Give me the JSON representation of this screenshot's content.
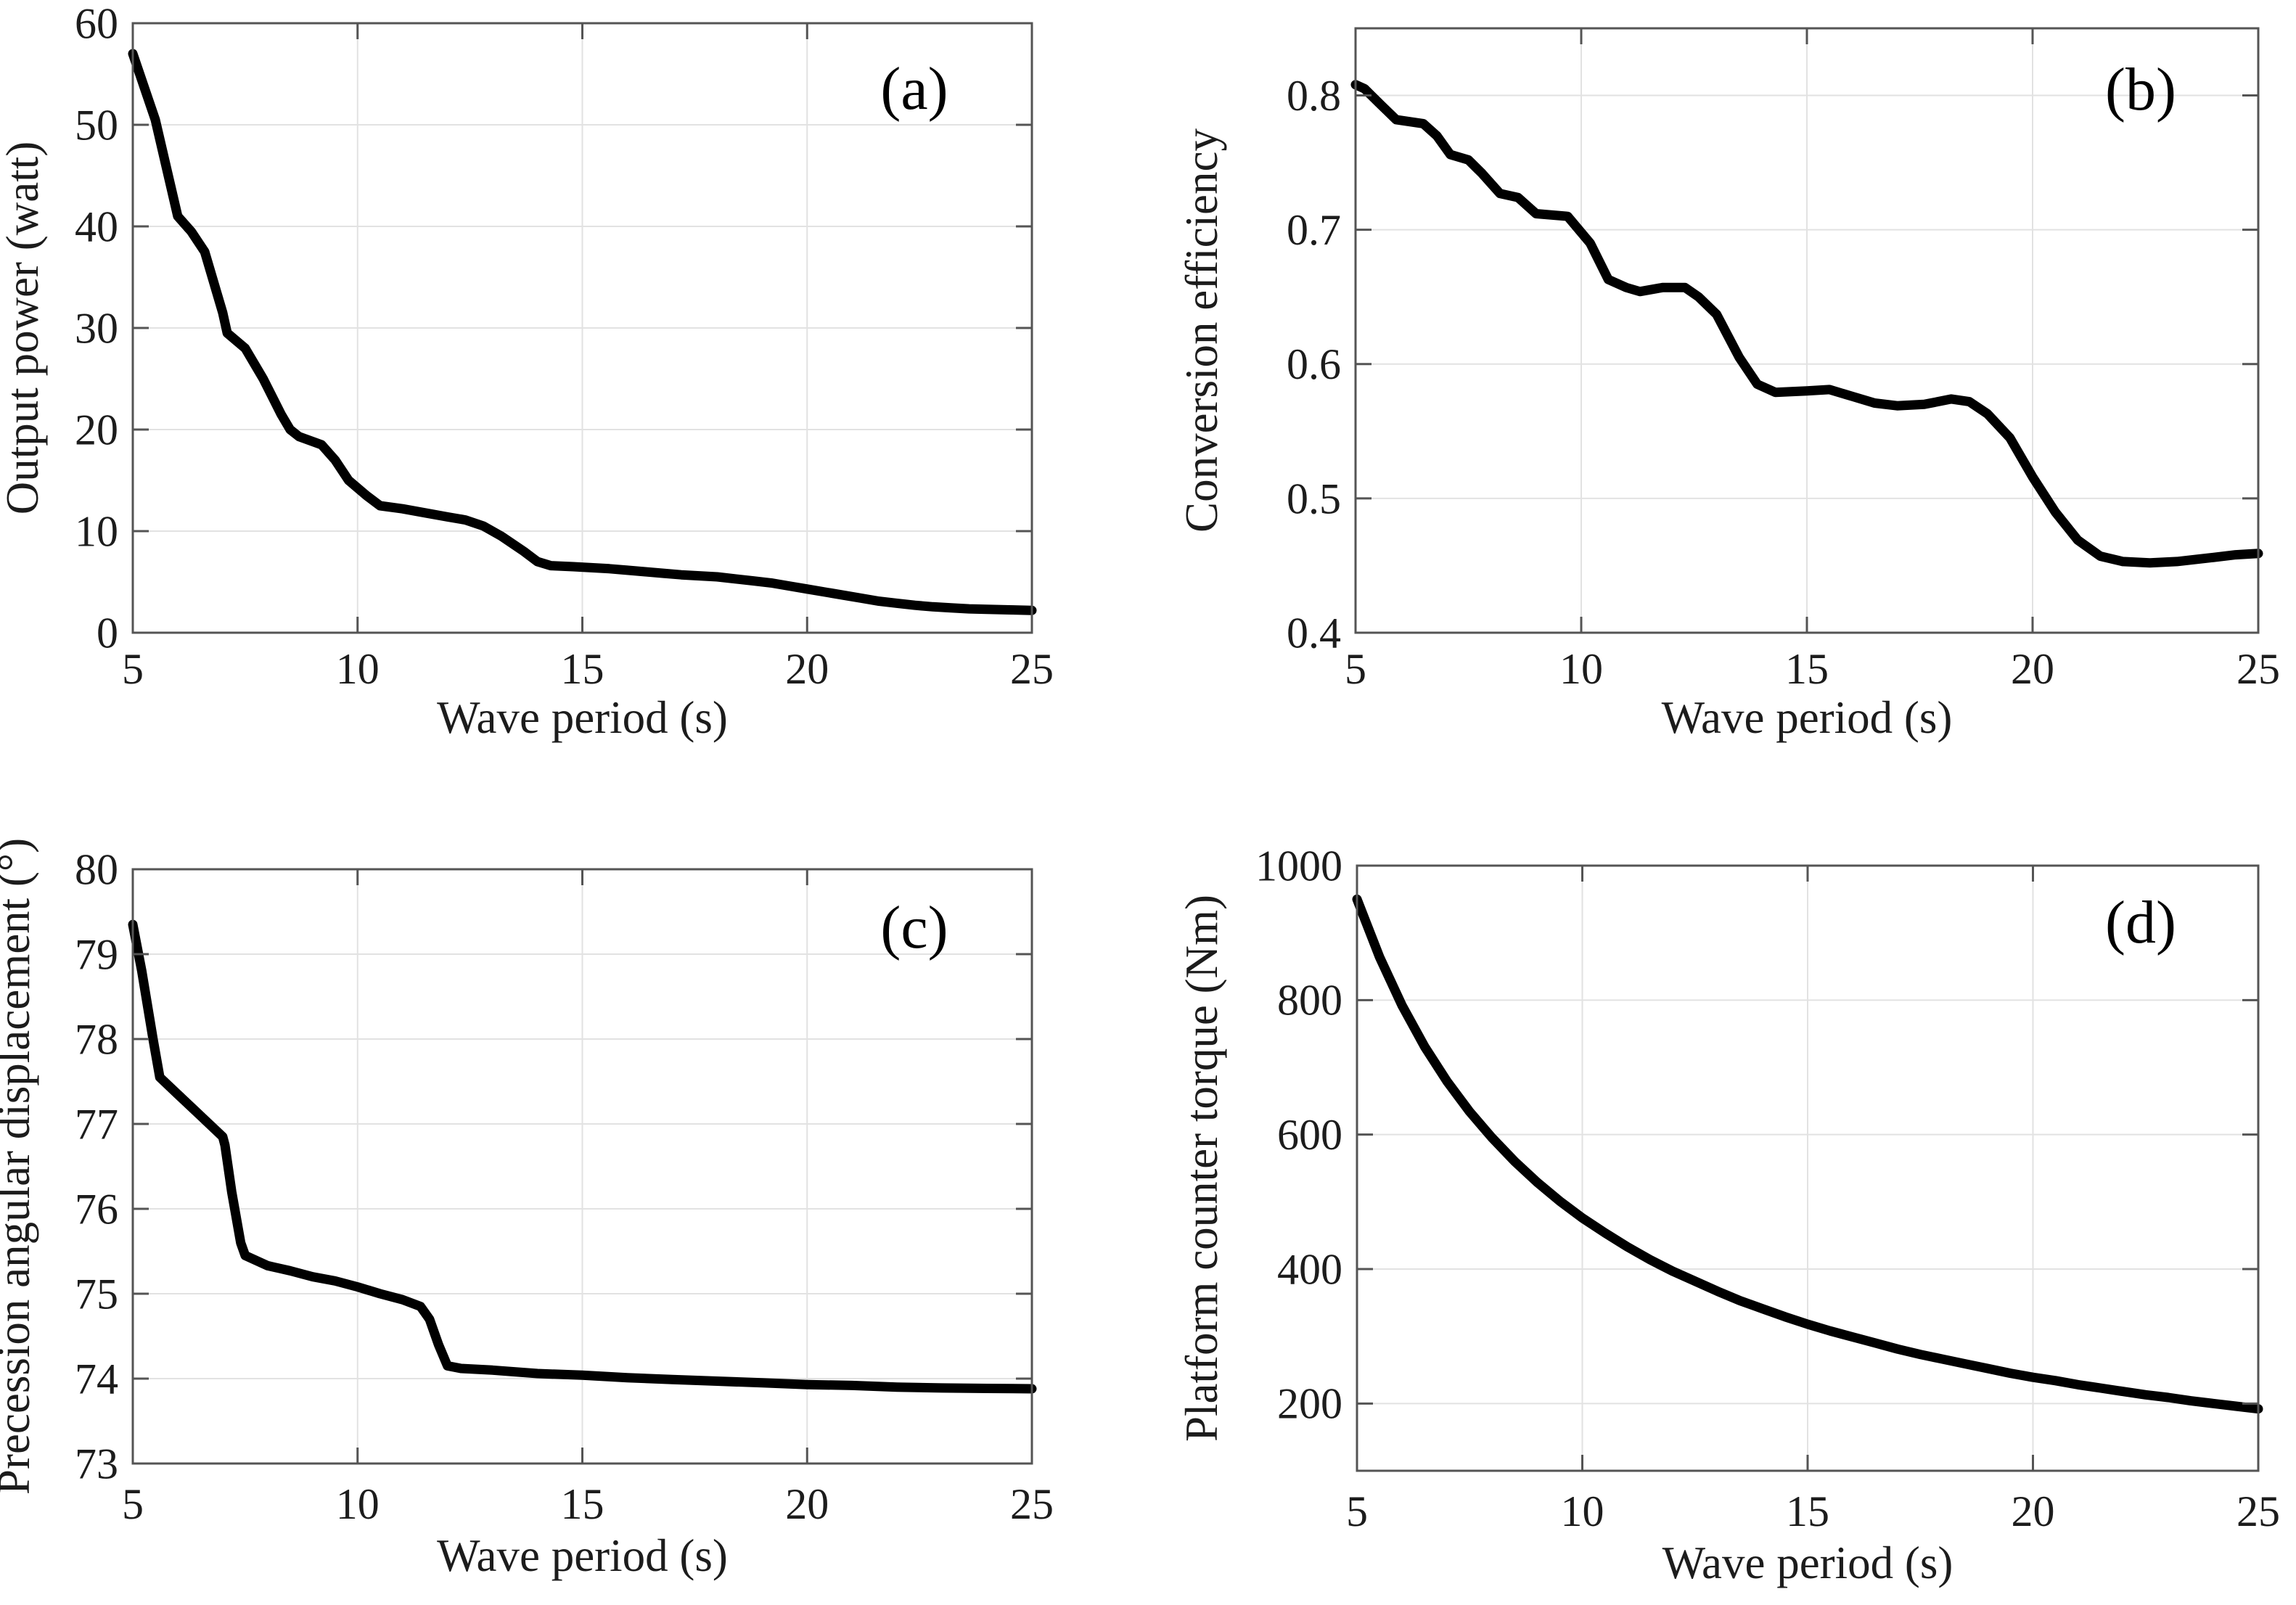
{
  "figure": {
    "background": "#ffffff",
    "colors": {
      "curve": "#000000",
      "frame": "#545454",
      "grid": "#e2e2e2",
      "tick_text": "#1c1c1c",
      "panel_label_text": "#000000"
    }
  },
  "chart_data": [
    {
      "type": "line",
      "panel_label": "(a)",
      "title": "",
      "xlabel": "Wave period (s)",
      "ylabel": "Output power (watt)",
      "xlim": [
        5,
        25
      ],
      "ylim": [
        0,
        60
      ],
      "xticks": [
        5,
        10,
        15,
        20,
        25
      ],
      "yticks": [
        0,
        10,
        20,
        30,
        40,
        50,
        60
      ],
      "grid": true,
      "legend": "none",
      "x": [
        5,
        5.5,
        6,
        6.3,
        6.6,
        7,
        7.1,
        7.5,
        7.9,
        8.3,
        8.5,
        8.7,
        9.2,
        9.5,
        9.8,
        10.2,
        10.5,
        11,
        11.5,
        12,
        12.4,
        12.8,
        13.2,
        13.7,
        14,
        14.3,
        14.8,
        15.2,
        15.6,
        16,
        16.4,
        16.8,
        17.2,
        17.6,
        18,
        18.4,
        18.8,
        19.2,
        19.6,
        20,
        20.4,
        20.8,
        21.2,
        21.6,
        22,
        22.4,
        22.8,
        23.2,
        23.6,
        24,
        24.5,
        25
      ],
      "y": [
        57,
        50.5,
        41,
        39.5,
        37.5,
        31.5,
        29.5,
        28,
        25,
        21.5,
        20,
        19.3,
        18.5,
        17,
        15,
        13.5,
        12.5,
        12.2,
        11.8,
        11.4,
        11.1,
        10.5,
        9.5,
        8,
        7,
        6.6,
        6.5,
        6.4,
        6.3,
        6.15,
        6,
        5.85,
        5.7,
        5.6,
        5.5,
        5.3,
        5.1,
        4.9,
        4.6,
        4.3,
        4,
        3.7,
        3.4,
        3.1,
        2.9,
        2.7,
        2.55,
        2.45,
        2.35,
        2.3,
        2.25,
        2.2
      ]
    },
    {
      "type": "line",
      "panel_label": "(b)",
      "title": "",
      "xlabel": "Wave period (s)",
      "ylabel": "Conversion efficiency",
      "xlim": [
        5,
        25
      ],
      "ylim": [
        0.4,
        0.85
      ],
      "xticks": [
        5,
        10,
        15,
        20,
        25
      ],
      "yticks": [
        0.4,
        0.5,
        0.6,
        0.7,
        0.8
      ],
      "grid": true,
      "legend": "none",
      "x": [
        5,
        5.2,
        5.5,
        5.9,
        6.5,
        6.8,
        7.1,
        7.5,
        7.8,
        8.2,
        8.6,
        9,
        9.7,
        10.2,
        10.6,
        11,
        11.3,
        11.8,
        12.3,
        12.6,
        13,
        13.5,
        13.9,
        14.3,
        15,
        15.5,
        16,
        16.5,
        17,
        17.6,
        18.2,
        18.6,
        19,
        19.5,
        20,
        20.5,
        21,
        21.5,
        22,
        22.6,
        23.2,
        24,
        24.5,
        25
      ],
      "y": [
        0.808,
        0.805,
        0.795,
        0.782,
        0.779,
        0.77,
        0.756,
        0.752,
        0.742,
        0.727,
        0.724,
        0.712,
        0.71,
        0.69,
        0.663,
        0.657,
        0.654,
        0.657,
        0.657,
        0.65,
        0.637,
        0.605,
        0.585,
        0.579,
        0.58,
        0.581,
        0.576,
        0.571,
        0.569,
        0.57,
        0.574,
        0.572,
        0.563,
        0.545,
        0.516,
        0.49,
        0.469,
        0.457,
        0.453,
        0.452,
        0.453,
        0.456,
        0.458,
        0.459
      ]
    },
    {
      "type": "line",
      "panel_label": "(c)",
      "title": "",
      "xlabel": "Wave period (s)",
      "ylabel": "Precession angular displacement (°)",
      "xlim": [
        5,
        25
      ],
      "ylim": [
        73,
        80
      ],
      "xticks": [
        5,
        10,
        15,
        20,
        25
      ],
      "yticks": [
        73,
        74,
        75,
        76,
        77,
        78,
        79,
        80
      ],
      "grid": true,
      "legend": "none",
      "x": [
        5,
        5.2,
        5.45,
        5.6,
        6,
        6.5,
        7,
        7.05,
        7.2,
        7.4,
        7.5,
        8,
        8.5,
        9,
        9.5,
        10,
        10.5,
        11,
        11.4,
        11.6,
        11.8,
        12,
        12.3,
        13,
        14,
        15,
        16,
        17,
        18,
        19,
        20,
        21,
        22,
        23,
        24,
        25
      ],
      "y": [
        79.35,
        78.8,
        78,
        77.55,
        77.35,
        77.1,
        76.85,
        76.75,
        76.2,
        75.6,
        75.45,
        75.33,
        75.27,
        75.2,
        75.15,
        75.08,
        75,
        74.93,
        74.85,
        74.7,
        74.4,
        74.15,
        74.12,
        74.1,
        74.06,
        74.04,
        74.01,
        73.99,
        73.97,
        73.95,
        73.93,
        73.92,
        73.9,
        73.89,
        73.885,
        73.88
      ]
    },
    {
      "type": "line",
      "panel_label": "(d)",
      "title": "",
      "xlabel": "Wave period (s)",
      "ylabel": "Platform counter torque (Nm)",
      "xlim": [
        5,
        25
      ],
      "ylim": [
        100,
        1000
      ],
      "xticks": [
        5,
        10,
        15,
        20,
        25
      ],
      "yticks": [
        200,
        400,
        600,
        800,
        1000
      ],
      "grid": true,
      "legend": "none",
      "x": [
        5,
        5.5,
        6,
        6.5,
        7,
        7.5,
        8,
        8.5,
        9,
        9.5,
        10,
        10.5,
        11,
        11.5,
        12,
        12.5,
        13,
        13.5,
        14,
        14.5,
        15,
        15.5,
        16,
        16.5,
        17,
        17.5,
        18,
        18.5,
        19,
        19.5,
        20,
        20.5,
        21,
        21.5,
        22,
        22.5,
        23,
        23.5,
        24,
        24.5,
        25
      ],
      "y": [
        950,
        864,
        792,
        731,
        679,
        634,
        595,
        560,
        529,
        501,
        476,
        454,
        433,
        414,
        397,
        382,
        367,
        353,
        341,
        329,
        318,
        308,
        299,
        290,
        281,
        273,
        266,
        259,
        252,
        245,
        239,
        234,
        228,
        223,
        218,
        213,
        209,
        204,
        200,
        196,
        192
      ]
    }
  ]
}
